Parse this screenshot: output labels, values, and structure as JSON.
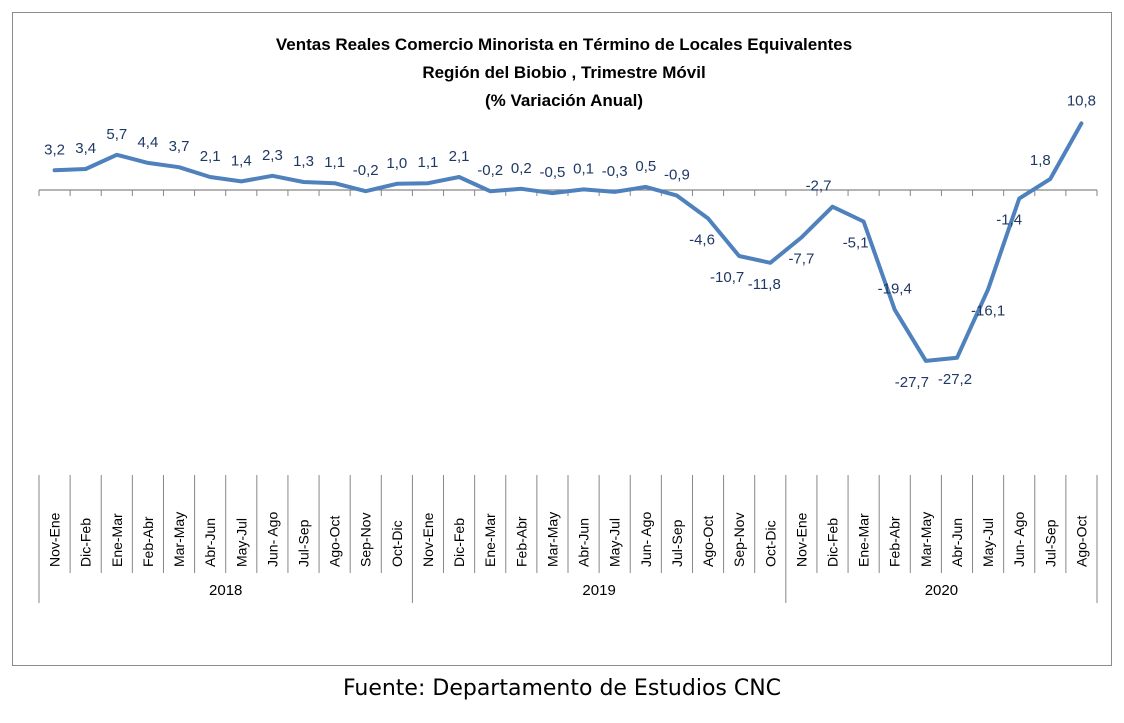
{
  "chart_data": {
    "type": "line",
    "title": [
      "Ventas Reales Comercio Minorista  en Término de Locales Equivalentes",
      "Región del Biobio , Trimestre Móvil",
      "(% Variación Anual)"
    ],
    "categories": [
      "Nov-Ene",
      "Dic-Feb",
      "Ene-Mar",
      "Feb-Abr",
      "Mar-May",
      "Abr-Jun",
      "May-Jul",
      "Jun- Ago",
      "Jul-Sep",
      "Ago-Oct",
      "Sep-Nov",
      "Oct-Dic",
      "Nov-Ene",
      "Dic-Feb",
      "Ene-Mar",
      "Feb-Abr",
      "Mar-May",
      "Abr-Jun",
      "May-Jul",
      "Jun- Ago",
      "Jul-Sep",
      "Ago-Oct",
      "Sep-Nov",
      "Oct-Dic",
      "Nov-Ene",
      "Dic-Feb",
      "Ene-Mar",
      "Feb-Abr",
      "Mar-May",
      "Abr-Jun",
      "May-Jul",
      "Jun- Ago",
      "Jul-Sep",
      "Ago-Oct"
    ],
    "years": [
      {
        "label": "2018",
        "count": 12
      },
      {
        "label": "2019",
        "count": 12
      },
      {
        "label": "2020",
        "count": 10
      }
    ],
    "values": [
      3.2,
      3.4,
      5.7,
      4.4,
      3.7,
      2.1,
      1.4,
      2.3,
      1.3,
      1.1,
      -0.2,
      1.0,
      1.1,
      2.1,
      -0.2,
      0.2,
      -0.5,
      0.1,
      -0.3,
      0.5,
      -0.9,
      -4.6,
      -10.7,
      -11.8,
      -7.7,
      -2.7,
      -5.1,
      -19.4,
      -27.7,
      -27.2,
      -16.1,
      -1.4,
      1.8,
      10.8
    ],
    "data_labels": [
      "3,2",
      "3,4",
      "5,7",
      "4,4",
      "3,7",
      "2,1",
      "1,4",
      "2,3",
      "1,3",
      "1,1",
      "-0,2",
      "1,0",
      "1,1",
      "2,1",
      "-0,2",
      "0,2",
      "-0,5",
      "0,1",
      "-0,3",
      "0,5",
      "-0,9",
      "-4,6",
      "-10,7",
      "-11,8",
      "-7,7",
      "-2,7",
      "-5,1",
      "-19,4",
      "-27,7",
      "-27,2",
      "-16,1",
      "-1,4",
      "1,8",
      "10,8"
    ],
    "line_color": "#4f81bd",
    "label_color": "#1f3864",
    "grid": false,
    "legend": "none"
  },
  "source": "Fuente: Departamento de Estudios CNC"
}
